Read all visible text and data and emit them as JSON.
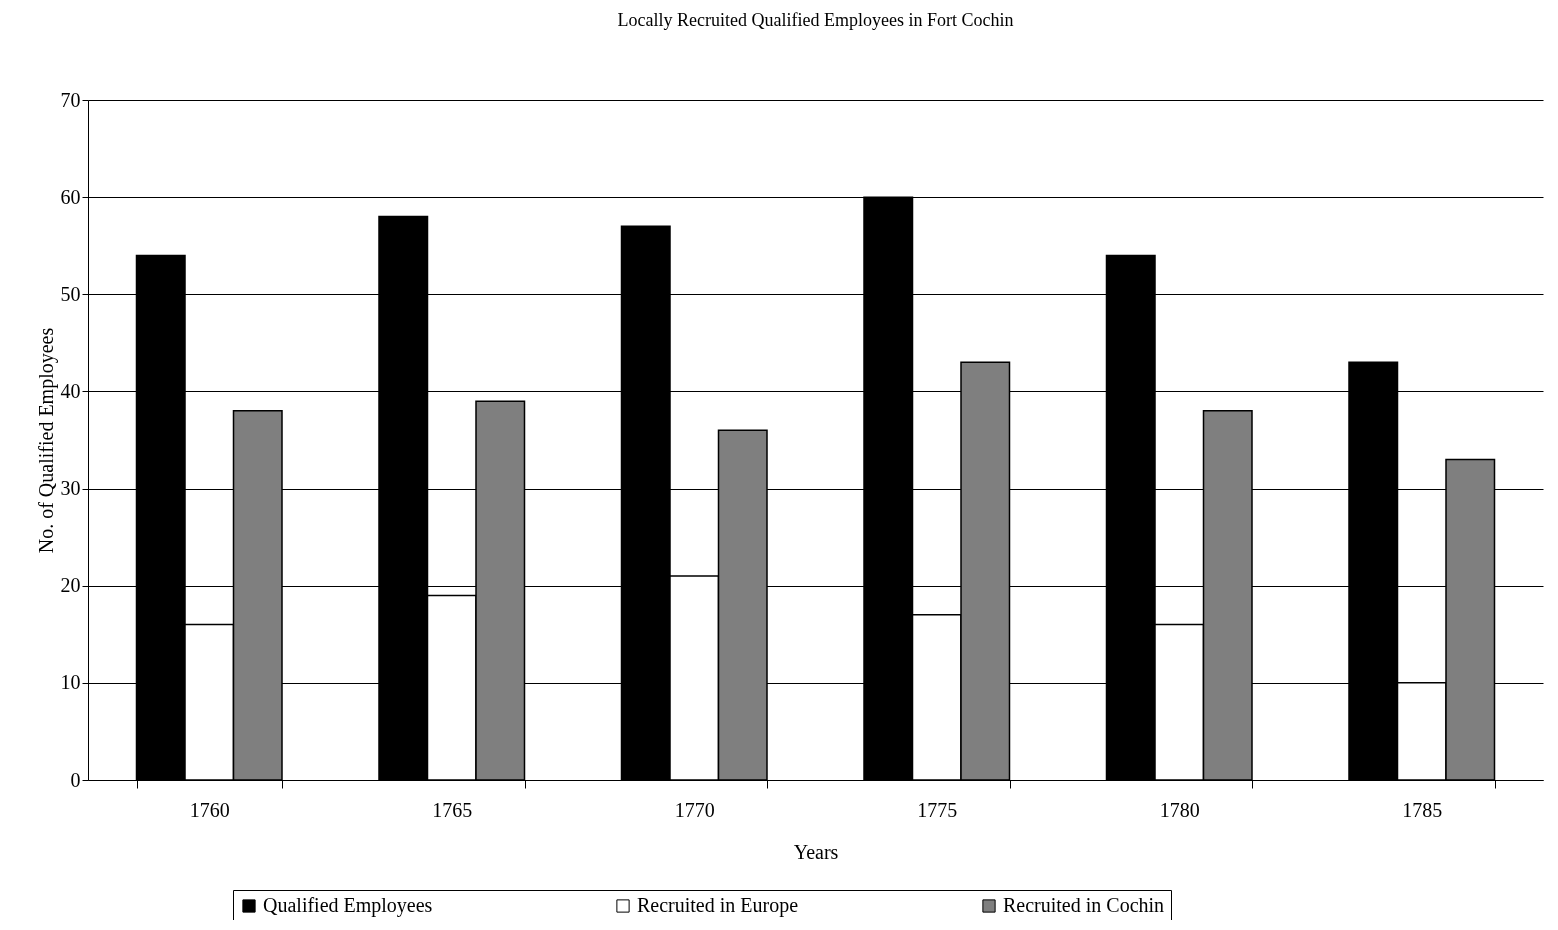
{
  "chart_data": {
    "type": "bar",
    "title": "Locally Recruited Qualified Employees in Fort Cochin",
    "xlabel": "Years",
    "ylabel": "No. of Qualified Employees",
    "categories": [
      "1760",
      "1765",
      "1770",
      "1775",
      "1780",
      "1785"
    ],
    "series": [
      {
        "name": "Qualified Employees",
        "color": "#000000",
        "values": [
          54,
          58,
          57,
          60,
          54,
          43
        ]
      },
      {
        "name": "Recruited in Europe",
        "color": "#ffffff",
        "values": [
          16,
          19,
          21,
          17,
          16,
          10
        ]
      },
      {
        "name": "Recruited in Cochin",
        "color": "#7f7f7f",
        "values": [
          38,
          39,
          36,
          43,
          38,
          33
        ]
      }
    ],
    "ylim": [
      0,
      70
    ],
    "yticks": [
      0,
      10,
      20,
      30,
      40,
      50,
      60,
      70
    ],
    "grid": "y",
    "legend": "bottom"
  }
}
